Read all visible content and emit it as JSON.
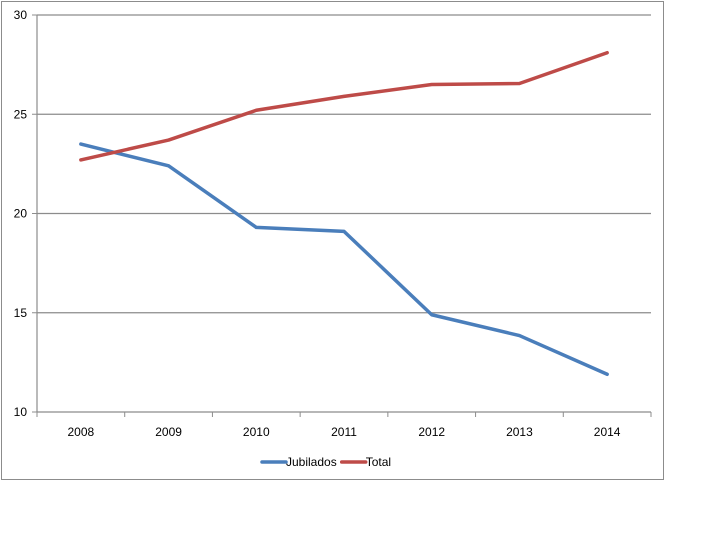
{
  "chart_data": {
    "type": "line",
    "title": "",
    "xlabel": "",
    "ylabel": "",
    "categories": [
      "2008",
      "2009",
      "2010",
      "2011",
      "2012",
      "2013",
      "2014"
    ],
    "ylim": [
      10,
      30
    ],
    "yticks": [
      10,
      15,
      20,
      25,
      30
    ],
    "grid": true,
    "legend_position": "bottom",
    "series": [
      {
        "name": "Jubilados",
        "color": "#4a7ebb",
        "values": [
          23.5,
          22.4,
          19.3,
          19.1,
          14.9,
          13.85,
          11.9
        ]
      },
      {
        "name": "Total",
        "color": "#be4b48",
        "values": [
          22.7,
          23.7,
          25.2,
          25.9,
          26.5,
          26.55,
          28.1
        ]
      }
    ]
  }
}
